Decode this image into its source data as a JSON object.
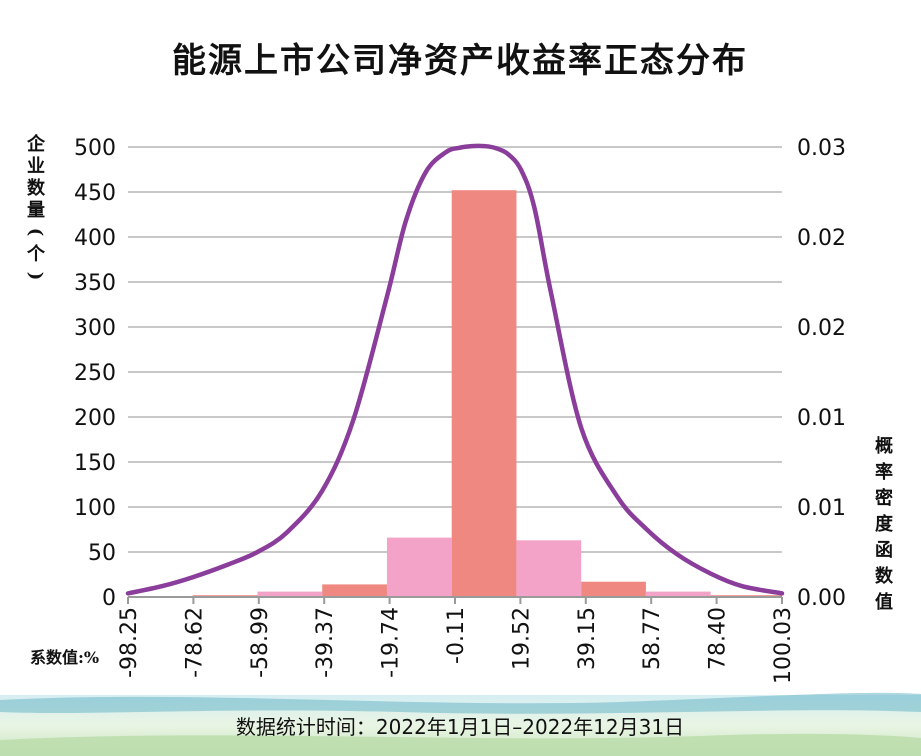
{
  "chart_data": {
    "type": "bar",
    "title": "能源上市公司净资产收益率正态分布",
    "ylabel_left": "企业数量(个)",
    "ylabel_right": "概率密度函数值",
    "xlabel": "系数值:%",
    "footnote": "数据统计时间：2022年1月1日–2022年12月31日",
    "x_ticks": [
      "-98.25",
      "-78.62",
      "-58.99",
      "-39.37",
      "-19.74",
      "-0.11",
      "19.52",
      "39.15",
      "58.77",
      "78.40",
      "100.03"
    ],
    "y_left_ticks": [
      "0",
      "50",
      "100",
      "150",
      "200",
      "250",
      "300",
      "350",
      "400",
      "450",
      "500"
    ],
    "y_right_ticks": [
      "0.00",
      "0.01",
      "0.01",
      "0.02",
      "0.02",
      "0.03"
    ],
    "ylim_left": [
      0,
      500
    ],
    "ylim_right": [
      0,
      0.025
    ],
    "bins": [
      {
        "from": -98.25,
        "to": -78.62,
        "count": 1,
        "color": "#f4a3c8"
      },
      {
        "from": -78.62,
        "to": -58.99,
        "count": 2,
        "color": "#ee8880"
      },
      {
        "from": -58.99,
        "to": -39.37,
        "count": 6,
        "color": "#f4a3c8"
      },
      {
        "from": -39.37,
        "to": -19.74,
        "count": 14,
        "color": "#ee8880"
      },
      {
        "from": -19.74,
        "to": -0.11,
        "count": 66,
        "color": "#f4a3c8"
      },
      {
        "from": -0.11,
        "to": 19.52,
        "count": 452,
        "color": "#ee8880"
      },
      {
        "from": 19.52,
        "to": 39.15,
        "count": 63,
        "color": "#f4a3c8"
      },
      {
        "from": 39.15,
        "to": 58.77,
        "count": 17,
        "color": "#ee8880"
      },
      {
        "from": 58.77,
        "to": 78.4,
        "count": 6,
        "color": "#f4a3c8"
      },
      {
        "from": 78.4,
        "to": 100.03,
        "count": 2,
        "color": "#ee8880"
      }
    ],
    "density_curve": {
      "color": "#8a3d9a",
      "x": [
        -98.25,
        -88,
        -78.62,
        -68,
        -58.99,
        -50,
        -39.37,
        -30,
        -19.74,
        -14,
        -8,
        -2,
        2,
        6,
        9.7,
        13,
        17,
        21,
        25,
        30,
        39.15,
        50,
        58.77,
        68,
        78.4,
        88,
        100.03
      ],
      "y": [
        0.0002,
        0.0006,
        0.0011,
        0.0018,
        0.0025,
        0.0036,
        0.0059,
        0.0098,
        0.0167,
        0.0209,
        0.0236,
        0.0247,
        0.02495,
        0.02505,
        0.02505,
        0.02495,
        0.0246,
        0.0237,
        0.0216,
        0.0169,
        0.0094,
        0.0056,
        0.0038,
        0.0024,
        0.0013,
        0.0006,
        0.0002
      ]
    }
  }
}
